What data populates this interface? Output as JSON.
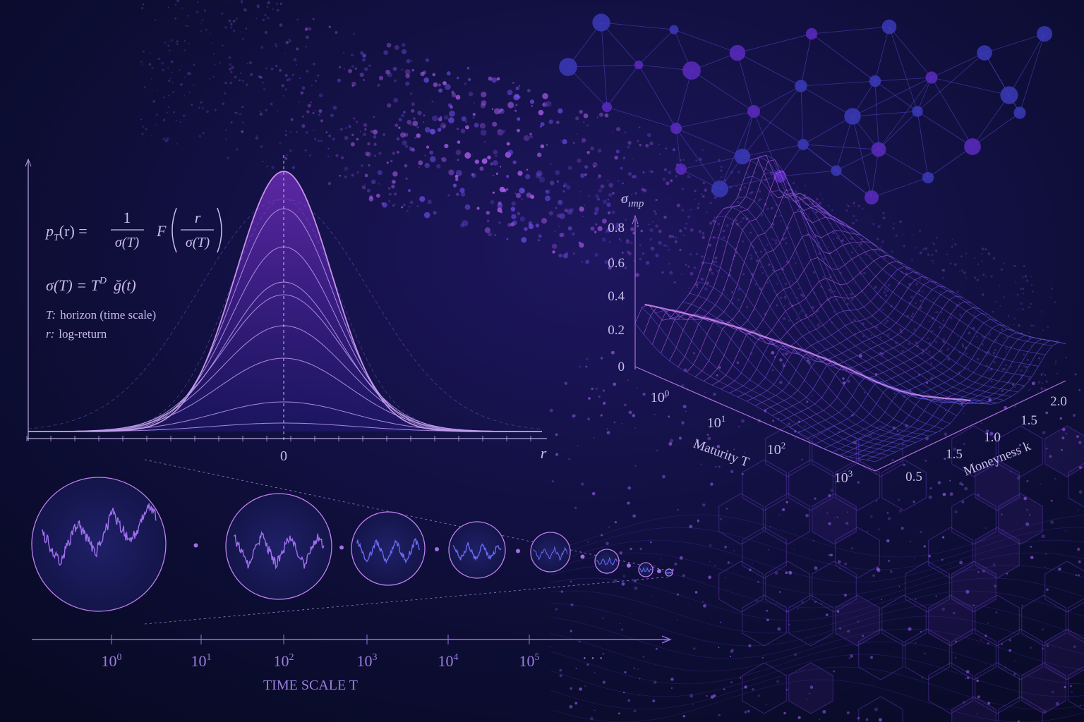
{
  "formula_density": {
    "lhs": "p",
    "lhs_sub": "T",
    "lhs_rest": "(r) =",
    "frac1_num": "1",
    "frac1_den": "σ(T)",
    "func": "F",
    "frac2_num": "r",
    "frac2_den": "σ(T)"
  },
  "formula_scaling": {
    "lhs": "σ(T) = T",
    "sup": "D",
    "rhs": "ğ(t)"
  },
  "definitions": [
    {
      "symbol": "T:",
      "text": "horizon (time scale)"
    },
    {
      "symbol": "r:",
      "text": "log-return"
    }
  ],
  "density_axis": {
    "center_label": "0",
    "x_label": "r"
  },
  "time_axis": {
    "ticks": [
      {
        "base": "10",
        "exp": "0"
      },
      {
        "base": "10",
        "exp": "1"
      },
      {
        "base": "10",
        "exp": "2"
      },
      {
        "base": "10",
        "exp": "3"
      },
      {
        "base": "10",
        "exp": "4"
      },
      {
        "base": "10",
        "exp": "5"
      }
    ],
    "ellipsis": "· · ·",
    "label": "TIME SCALE T"
  },
  "surface": {
    "z_label": "σ",
    "z_label_sub": "ımp",
    "z_ticks": [
      "0.8",
      "0.6",
      "0.4",
      "0.2",
      "0"
    ],
    "maturity_ticks": [
      {
        "base": "10",
        "exp": "0"
      },
      {
        "base": "10",
        "exp": "1"
      },
      {
        "base": "10",
        "exp": "2"
      },
      {
        "base": "10",
        "exp": "3"
      }
    ],
    "maturity_label": "Maturity T",
    "moneyness_ticks": [
      "2.0",
      "1.5",
      "1.0",
      "1.5",
      "0.5"
    ],
    "moneyness_label": "Moneyness k"
  }
}
